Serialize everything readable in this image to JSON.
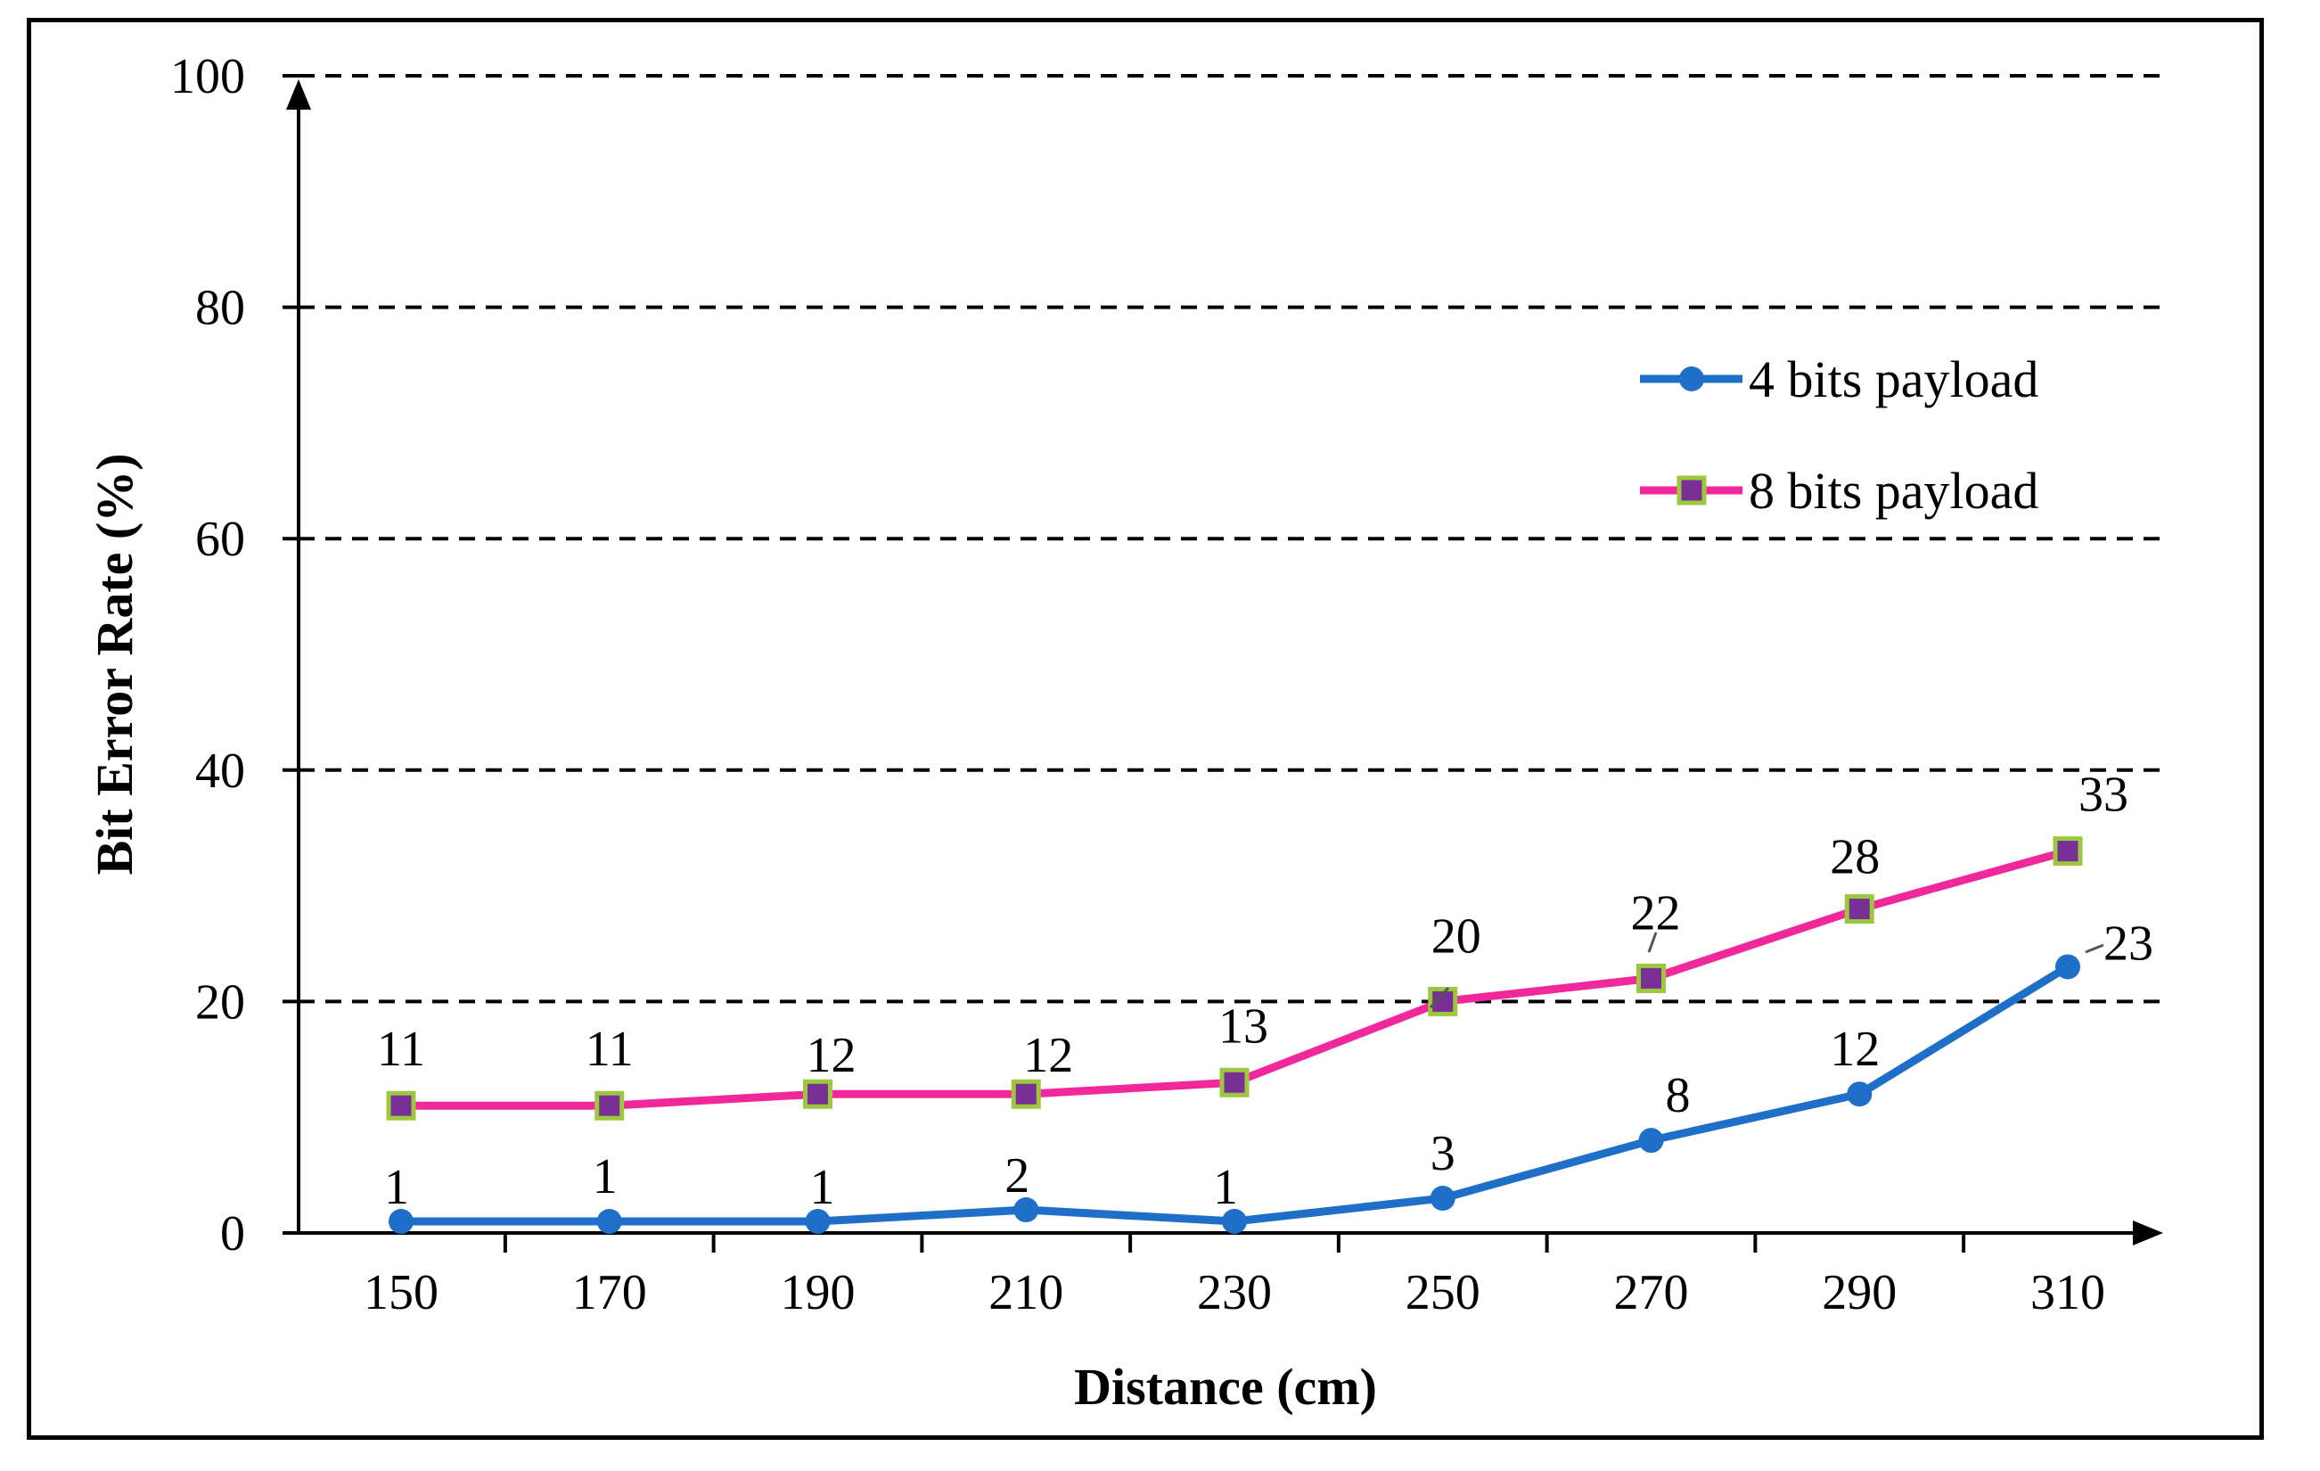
{
  "chart_data": {
    "type": "line",
    "title": "",
    "xlabel": "Distance (cm)",
    "ylabel": "Bit Error Rate (%)",
    "x": [
      150,
      170,
      190,
      210,
      230,
      250,
      270,
      290,
      310
    ],
    "x_tick_labels": [
      "150",
      "170",
      "190",
      "210",
      "230",
      "250",
      "270",
      "290",
      "310"
    ],
    "ylim": [
      0,
      100
    ],
    "y_ticks": [
      0,
      20,
      40,
      60,
      80,
      100
    ],
    "y_tick_labels": [
      "0",
      "20",
      "40",
      "60",
      "80",
      "100"
    ],
    "grid": "horizontal dashed",
    "legend_position": "right",
    "series": [
      {
        "name": "4 bits payload",
        "values": [
          1,
          1,
          1,
          2,
          1,
          3,
          8,
          12,
          23
        ],
        "labels": [
          "1",
          "1",
          "1",
          "2",
          "1",
          "3",
          "8",
          "12",
          "23"
        ],
        "color": "#1F6FC8",
        "marker": "circle",
        "marker_color": "#1F6FC8"
      },
      {
        "name": "8 bits payload",
        "values": [
          11,
          11,
          12,
          12,
          13,
          20,
          22,
          28,
          33
        ],
        "labels": [
          "11",
          "11",
          "12",
          "12",
          "13",
          "20",
          "22",
          "28",
          "33"
        ],
        "color": "#F0289C",
        "marker": "square",
        "marker_color": "#7A2F96",
        "marker_edge": "#9BC83C"
      }
    ]
  }
}
